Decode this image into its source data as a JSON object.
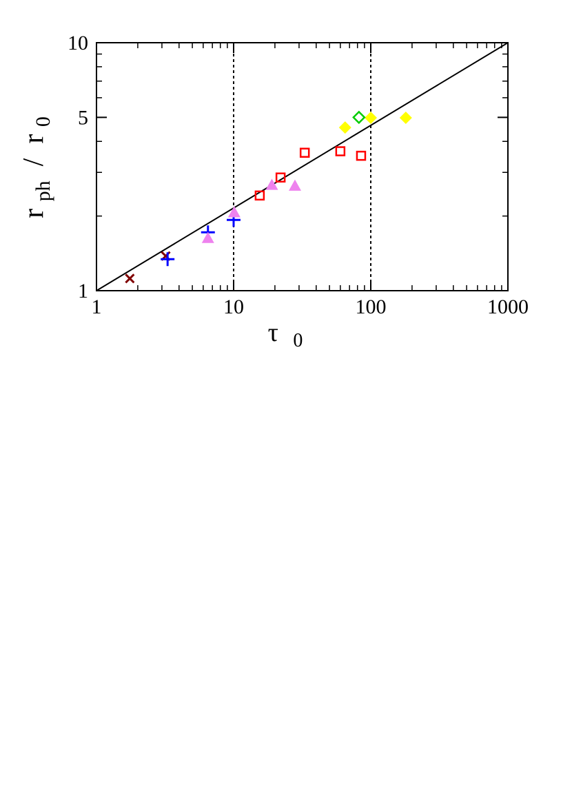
{
  "chart_data": {
    "type": "scatter",
    "x_scale": "log",
    "y_scale": "log",
    "xlim": [
      1,
      1000
    ],
    "ylim": [
      1,
      10
    ],
    "x_ticks": [
      "1",
      "10",
      "100",
      "1000"
    ],
    "y_ticks": [
      "1",
      "5",
      "10"
    ],
    "xlabel": {
      "main": "τ",
      "sub": "0"
    },
    "ylabel": {
      "r": "r",
      "ph_sub": "ph",
      "slash": " / ",
      "r2": "r",
      "zero_sub": "0"
    },
    "vlines": [
      10,
      100
    ],
    "reference_line": {
      "x": [
        1,
        1000
      ],
      "y": [
        1,
        10
      ]
    },
    "legend": "none",
    "series": [
      {
        "marker": "x",
        "color": "#800000",
        "points": [
          {
            "x": 1.75,
            "y": 1.12
          },
          {
            "x": 3.2,
            "y": 1.38
          }
        ]
      },
      {
        "marker": "plus",
        "color": "#0000ff",
        "points": [
          {
            "x": 3.3,
            "y": 1.34
          },
          {
            "x": 6.5,
            "y": 1.72
          },
          {
            "x": 10.0,
            "y": 1.93
          }
        ]
      },
      {
        "marker": "triangle-filled",
        "color": "#ee82ee",
        "points": [
          {
            "x": 6.5,
            "y": 1.63
          },
          {
            "x": 10.1,
            "y": 2.07
          },
          {
            "x": 19.0,
            "y": 2.67
          },
          {
            "x": 28.0,
            "y": 2.65
          }
        ]
      },
      {
        "marker": "square-open",
        "color": "#ff0000",
        "points": [
          {
            "x": 15.5,
            "y": 2.42
          },
          {
            "x": 22.0,
            "y": 2.86
          },
          {
            "x": 33.0,
            "y": 3.6
          },
          {
            "x": 60.0,
            "y": 3.65
          },
          {
            "x": 85.0,
            "y": 3.5
          }
        ]
      },
      {
        "marker": "diamond-filled",
        "color": "#ffff00",
        "points": [
          {
            "x": 65.0,
            "y": 4.55
          },
          {
            "x": 100.0,
            "y": 4.98
          },
          {
            "x": 180.0,
            "y": 4.98
          }
        ]
      },
      {
        "marker": "diamond-open",
        "color": "#00cc00",
        "points": [
          {
            "x": 82.0,
            "y": 5.0
          }
        ]
      }
    ]
  }
}
